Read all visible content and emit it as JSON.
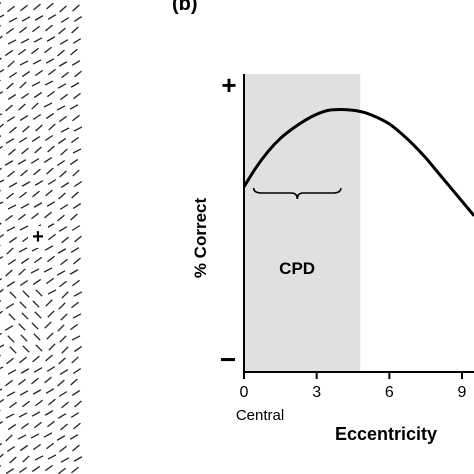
{
  "panel_b_label": "(b)",
  "fixation_mark": "+",
  "chart_data": {
    "type": "line",
    "ylabel": "% Correct",
    "xlabel": "Eccentricity",
    "y_top_tick": "+",
    "y_bottom_tick": "−",
    "x_ticks": [
      0,
      3,
      6,
      9
    ],
    "x_tick_labels": [
      "0",
      "3",
      "6",
      "9"
    ],
    "x_endpoint_label_left": "Central",
    "xlim": [
      0,
      9.5
    ],
    "shaded_region": {
      "label": "CPD",
      "x_start": 0,
      "x_end": 4.8
    },
    "brace_span": [
      0.4,
      4.0
    ],
    "series": [
      {
        "x": [
          0,
          0.5,
          1,
          1.5,
          2,
          2.5,
          3,
          3.5,
          4,
          4.5,
          5,
          5.5,
          6,
          6.5,
          7,
          7.5,
          8,
          8.5,
          9,
          9.5
        ],
        "y": [
          0.4,
          0.52,
          0.62,
          0.7,
          0.76,
          0.81,
          0.85,
          0.875,
          0.88,
          0.875,
          0.86,
          0.83,
          0.79,
          0.73,
          0.66,
          0.58,
          0.49,
          0.4,
          0.31,
          0.22
        ]
      }
    ],
    "ylim": [
      -0.75,
      1.1
    ]
  }
}
